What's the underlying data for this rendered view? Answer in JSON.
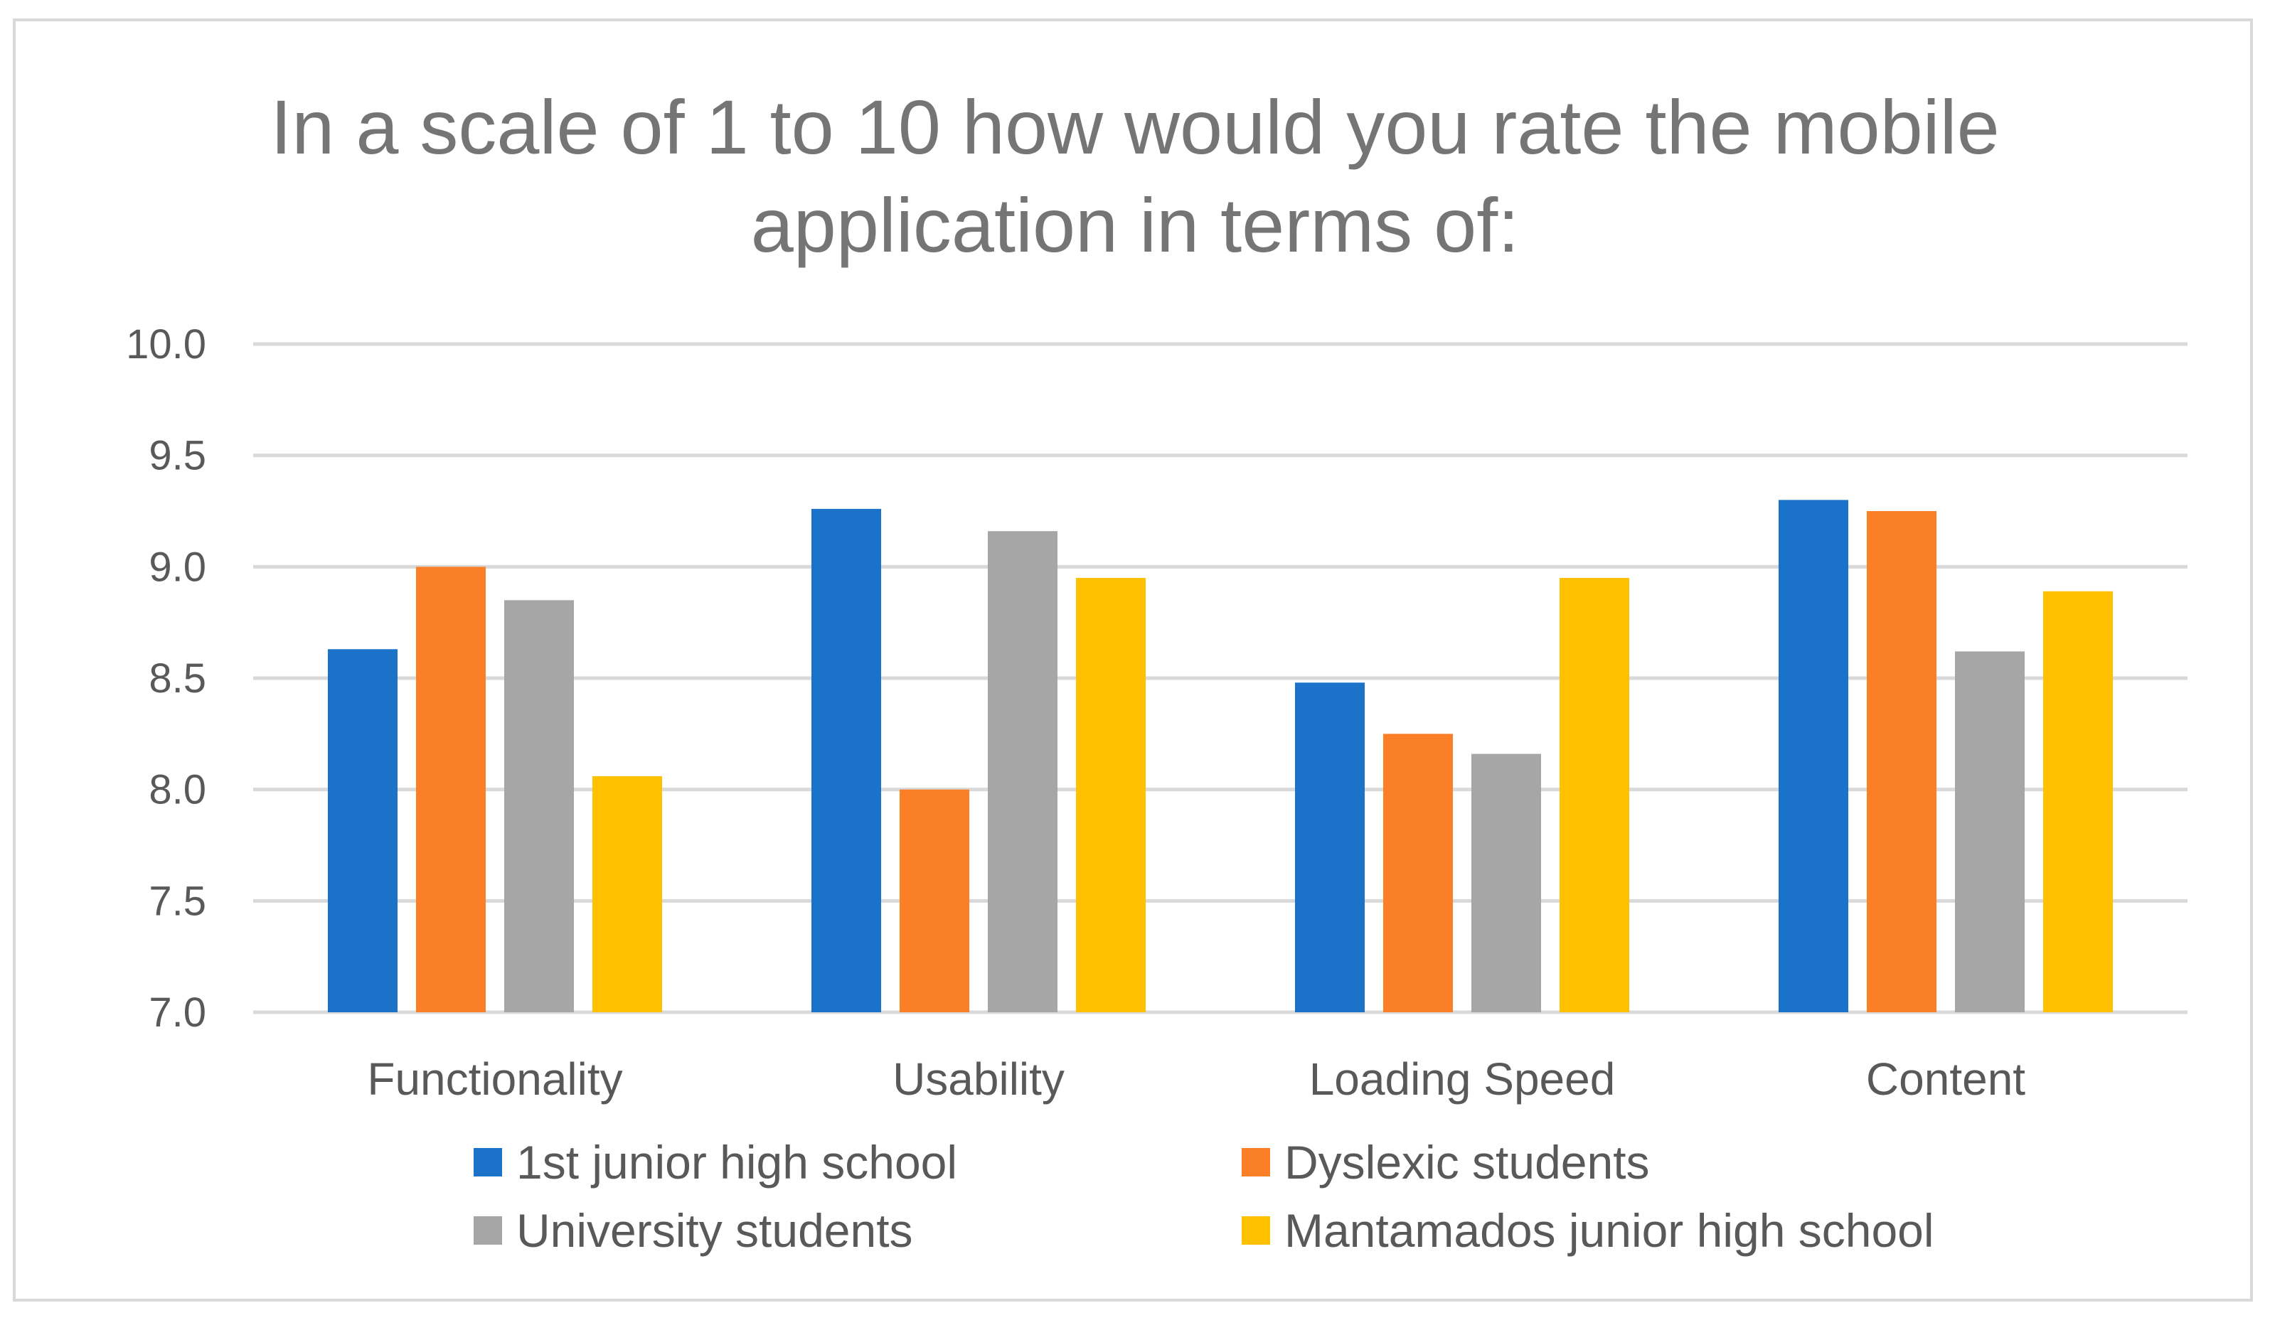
{
  "chart_data": {
    "type": "bar",
    "title": "In a scale of 1 to 10 how would you rate the mobile\napplication in terms of:",
    "categories": [
      "Functionality",
      "Usability",
      "Loading Speed",
      "Content"
    ],
    "series": [
      {
        "name": "1st junior high school",
        "color": "#1a73c9",
        "values": [
          8.63,
          9.26,
          8.48,
          9.3
        ]
      },
      {
        "name": "Dyslexic students",
        "color": "#fb7f26",
        "values": [
          9.0,
          8.0,
          8.25,
          9.25
        ]
      },
      {
        "name": "University students",
        "color": "#a6a6a6",
        "values": [
          8.85,
          9.16,
          8.16,
          8.62
        ]
      },
      {
        "name": "Mantamados junior high school",
        "color": "#ffc000",
        "values": [
          8.06,
          8.95,
          8.95,
          8.89
        ]
      }
    ],
    "ylim": [
      7.0,
      10.0
    ],
    "yticks": [
      "7.0",
      "7.5",
      "8.0",
      "8.5",
      "9.0",
      "9.5",
      "10.0"
    ],
    "grid": true,
    "legend_position": "bottom",
    "xlabel": "",
    "ylabel": ""
  }
}
